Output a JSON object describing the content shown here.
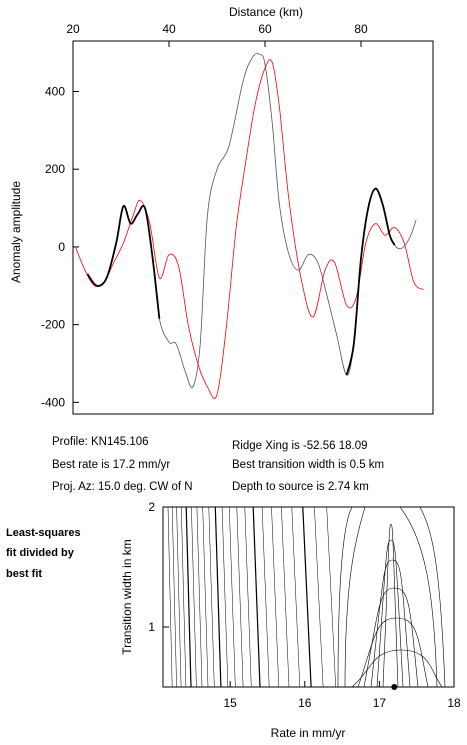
{
  "chart_data": [
    {
      "type": "line",
      "title": "",
      "xlabel": "Distance (km)",
      "ylabel": "Anomaly amplitude",
      "xlim": [
        20,
        95
      ],
      "ylim": [
        -430,
        530
      ],
      "xticks": [
        20,
        40,
        60,
        80
      ],
      "yticks": [
        -400,
        -200,
        0,
        200,
        400
      ],
      "x_axis_position": "top",
      "grid": false,
      "series": [
        {
          "color": "#555555",
          "x": [
            23,
            25,
            27,
            29,
            30.5,
            32,
            33.5,
            35,
            36.5,
            38,
            40,
            41.5,
            43.5,
            45,
            46.5,
            48,
            50,
            52.5,
            55.5,
            57.5,
            59,
            60,
            61.5,
            63,
            65,
            67,
            69,
            71,
            73,
            75,
            77,
            78.5,
            80,
            81.5,
            83,
            84.5,
            86,
            88,
            90,
            91.5
          ],
          "y": [
            -70,
            -100,
            -80,
            10,
            105,
            60,
            85,
            100,
            -20,
            -185,
            -245,
            -250,
            -325,
            -360,
            -250,
            80,
            200,
            260,
            430,
            490,
            495,
            470,
            320,
            110,
            -20,
            -60,
            -20,
            -40,
            -130,
            -230,
            -330,
            -250,
            -30,
            100,
            150,
            110,
            30,
            -5,
            20,
            70
          ]
        },
        {
          "color": "#ff0000",
          "x": [
            20.5,
            22.5,
            24.5,
            26.5,
            28.5,
            30.5,
            32.5,
            34,
            36,
            38,
            40,
            42,
            44,
            46,
            48,
            50,
            52,
            54,
            56,
            58,
            60,
            61.5,
            63,
            65,
            67.5,
            70,
            72.5,
            74.5,
            77,
            79,
            81,
            83,
            85,
            87,
            89,
            91,
            93
          ],
          "y": [
            0,
            -60,
            -100,
            -90,
            -40,
            10,
            80,
            120,
            60,
            -80,
            -20,
            -50,
            -200,
            -300,
            -360,
            -380,
            -200,
            50,
            220,
            370,
            460,
            475,
            360,
            120,
            -80,
            -180,
            -60,
            -40,
            -150,
            -130,
            10,
            60,
            30,
            50,
            10,
            -90,
            -110
          ]
        },
        {
          "color": "#000000",
          "x": [
            23,
            25,
            27,
            29,
            30.5,
            32,
            33.5,
            35,
            36.5,
            38
          ],
          "y": [
            -70,
            -100,
            -80,
            10,
            105,
            60,
            85,
            100,
            -20,
            -185
          ]
        },
        {
          "color": "#000000",
          "x": [
            77,
            78.5,
            80,
            81.5,
            83,
            84.5,
            86,
            87
          ],
          "y": [
            -330,
            -250,
            -30,
            100,
            150,
            110,
            30,
            5
          ]
        }
      ],
      "annotations": [
        "Profile: KN145.106",
        "Best rate is 17.2 mm/yr",
        "Proj. Az: 15.0 deg. CW of N",
        "Ridge Xing is -52.56 18.09",
        "Best transition width is 0.5 km",
        "Depth to source is   2.74 km"
      ]
    },
    {
      "type": "contour",
      "xlabel": "Rate in mm/yr",
      "ylabel": "Transition width in km",
      "xlim": [
        14.1,
        18
      ],
      "ylim": [
        0.5,
        2
      ],
      "xticks": [
        15,
        16,
        17,
        18
      ],
      "yticks": [
        1,
        2
      ],
      "best_fit": {
        "rate": 17.2,
        "width": 0.5
      },
      "note_lines": [
        "Least-squares",
        "fit divided by",
        "best fit"
      ]
    }
  ]
}
